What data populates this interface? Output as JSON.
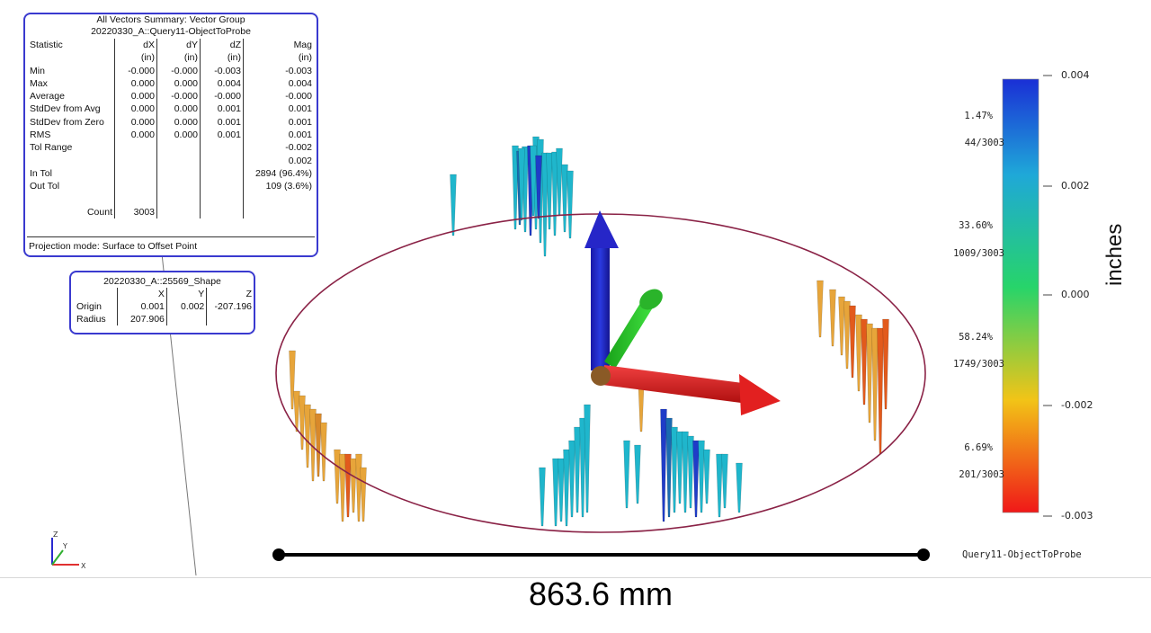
{
  "summary": {
    "title": "All Vectors Summary: Vector Group",
    "subtitle": "20220330_A::Query11-ObjectToProbe",
    "header": [
      "Statistic",
      "dX",
      "dY",
      "dZ",
      "Mag"
    ],
    "units": [
      "",
      "(in)",
      "(in)",
      "(in)",
      "(in)"
    ],
    "rows": [
      [
        "Min",
        "-0.000",
        "-0.000",
        "-0.003",
        "-0.003"
      ],
      [
        "Max",
        "0.000",
        "0.000",
        "0.004",
        "0.004"
      ],
      [
        "Average",
        "0.000",
        "-0.000",
        "-0.000",
        "-0.000"
      ],
      [
        "StdDev from Avg",
        "0.000",
        "0.000",
        "0.001",
        "0.001"
      ],
      [
        "StdDev from Zero",
        "0.000",
        "0.000",
        "0.001",
        "0.001"
      ],
      [
        "RMS",
        "0.000",
        "0.000",
        "0.001",
        "0.001"
      ],
      [
        "Tol Range",
        "",
        "",
        "",
        "-0.002"
      ],
      [
        "",
        "",
        "",
        "",
        "0.002"
      ],
      [
        "In Tol",
        "",
        "",
        "",
        "2894 (96.4%)"
      ],
      [
        "Out Tol",
        "",
        "",
        "",
        "109 (3.6%)"
      ],
      [
        "",
        "",
        "",
        "",
        ""
      ],
      [
        "Count",
        "3003",
        "",
        "",
        ""
      ]
    ],
    "projection": "Projection mode: Surface to Offset Point"
  },
  "shape": {
    "title": "20220330_A::25569_Shape",
    "header": [
      "",
      "X",
      "Y",
      "Z"
    ],
    "rows": [
      [
        "Origin",
        "0.001",
        "0.002",
        "-207.196"
      ],
      [
        "Radius",
        "207.906",
        "",
        ""
      ]
    ]
  },
  "colorbar": {
    "unit": "inches",
    "ticks": [
      "0.004",
      "0.002",
      "0.000",
      "-0.002",
      "-0.003"
    ],
    "bins": [
      {
        "pct": "1.47%",
        "count": "44/3003"
      },
      {
        "pct": "33.60%",
        "count": "1009/3003"
      },
      {
        "pct": "58.24%",
        "count": "1749/3003"
      },
      {
        "pct": "6.69%",
        "count": "201/3003"
      }
    ],
    "colors": [
      "#1a2fd6",
      "#1fb6d8",
      "#27d46a",
      "#f2c417",
      "#f01818"
    ]
  },
  "query_name": "Query11-ObjectToProbe",
  "measure_label": "863.6 mm",
  "axis_icon_labels": [
    "Z",
    "Y",
    "X"
  ],
  "axis_colors": {
    "x": "#e01818",
    "y": "#22c422",
    "z": "#1a1ac8"
  },
  "circle_color": "#8a2246"
}
